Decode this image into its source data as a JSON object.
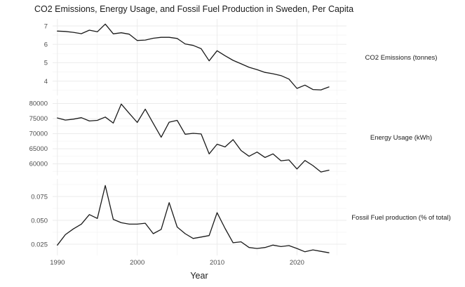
{
  "chart": {
    "title": "CO2 Emissions, Energy Usage, and Fossil Fuel Production in Sweden, Per Capita",
    "xlabel": "Year"
  },
  "chart_data": {
    "type": "line",
    "title": "CO2 Emissions, Energy Usage, and Fossil Fuel Production in Sweden, Per Capita",
    "xlabel": "Year",
    "legend": "none",
    "grid": "on",
    "line_color": "#1a1a1a",
    "grid_major_color": "#ebebeb",
    "grid_minor_color": "#f5f5f5",
    "tick_text_color": "#4d4d4d",
    "x": [
      1990,
      1991,
      1992,
      1993,
      1994,
      1995,
      1996,
      1997,
      1998,
      1999,
      2000,
      2001,
      2002,
      2003,
      2004,
      2005,
      2006,
      2007,
      2008,
      2009,
      2010,
      2011,
      2012,
      2013,
      2014,
      2015,
      2016,
      2017,
      2018,
      2019,
      2020,
      2021,
      2022,
      2023,
      2024
    ],
    "x_ticks": [
      1990,
      2000,
      2010,
      2020
    ],
    "x_tick_labels": [
      "1990",
      "2000",
      "2010",
      "2020"
    ],
    "x_minor_ticks": [
      1995,
      2005,
      2015,
      2025
    ],
    "xlim": [
      1989.4,
      2026.2
    ],
    "facets": [
      {
        "id": "co2",
        "strip_label": "CO2 Emissions (tonnes)",
        "ylabel_implicit": "tonnes",
        "y_ticks": [
          4,
          5,
          6,
          7
        ],
        "y_tick_labels": [
          "4",
          "5",
          "6",
          "7"
        ],
        "y_minor_ticks": [
          3.5,
          4.5,
          5.5,
          6.5
        ],
        "ylim": [
          3.22,
          7.38
        ],
        "values": [
          6.72,
          6.7,
          6.65,
          6.58,
          6.77,
          6.68,
          7.1,
          6.57,
          6.63,
          6.55,
          6.21,
          6.23,
          6.33,
          6.38,
          6.38,
          6.32,
          6.02,
          5.94,
          5.76,
          5.1,
          5.65,
          5.38,
          5.13,
          4.94,
          4.75,
          4.62,
          4.47,
          4.4,
          4.3,
          4.11,
          3.6,
          3.78,
          3.54,
          3.52,
          3.68
        ]
      },
      {
        "id": "energy",
        "strip_label": "Energy Usage (kWh)",
        "ylabel_implicit": "kWh",
        "y_ticks": [
          60000,
          65000,
          70000,
          75000,
          80000
        ],
        "y_tick_labels": [
          "60000",
          "65000",
          "70000",
          "75000",
          "80000"
        ],
        "y_minor_ticks": [
          57500,
          62500,
          67500,
          72500,
          77500
        ],
        "ylim": [
          56150,
          81500
        ],
        "values": [
          75200,
          74500,
          74800,
          75300,
          74200,
          74400,
          75500,
          73500,
          79800,
          76700,
          73700,
          78100,
          73400,
          68800,
          73800,
          74400,
          69800,
          70100,
          69900,
          63300,
          66500,
          65600,
          68000,
          64400,
          62500,
          63900,
          62100,
          63300,
          61000,
          61300,
          58300,
          61100,
          59400,
          57300,
          57900
        ]
      },
      {
        "id": "fossil",
        "strip_label": "Fossil Fuel production (% of total)",
        "ylabel_implicit": "fraction of total",
        "y_ticks": [
          0.025,
          0.05,
          0.075
        ],
        "y_tick_labels": [
          "0.025",
          "0.050",
          "0.075"
        ],
        "y_minor_ticks": [
          0.0125,
          0.0375,
          0.0625,
          0.0875
        ],
        "ylim": [
          0.0132,
          0.0934
        ],
        "values": [
          0.024,
          0.035,
          0.041,
          0.046,
          0.056,
          0.052,
          0.0865,
          0.051,
          0.0475,
          0.046,
          0.046,
          0.047,
          0.036,
          0.0405,
          0.0685,
          0.043,
          0.036,
          0.031,
          0.0325,
          0.034,
          0.058,
          0.0415,
          0.0265,
          0.0275,
          0.0215,
          0.0205,
          0.0215,
          0.024,
          0.0225,
          0.0235,
          0.0205,
          0.017,
          0.019,
          0.0175,
          0.016
        ]
      }
    ]
  }
}
